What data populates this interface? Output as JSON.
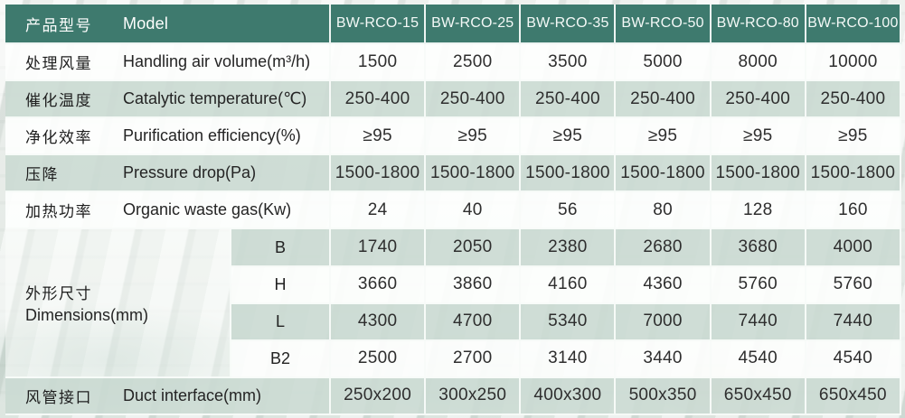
{
  "header": {
    "label_cn": "产品型号",
    "label_en": "Model",
    "models": [
      "BW-RCO-15",
      "BW-RCO-25",
      "BW-RCO-35",
      "BW-RCO-50",
      "BW-RCO-80",
      "BW-RCO-100"
    ]
  },
  "rows": [
    {
      "cn": "处理风量",
      "en": "Handling air volume(m³/h)",
      "values": [
        "1500",
        "2500",
        "3500",
        "5000",
        "8000",
        "10000"
      ]
    },
    {
      "cn": "催化温度",
      "en": "Catalytic temperature(℃)",
      "values": [
        "250-400",
        "250-400",
        "250-400",
        "250-400",
        "250-400",
        "250-400"
      ]
    },
    {
      "cn": "净化效率",
      "en": "Purification efficiency(%)",
      "values": [
        "≥95",
        "≥95",
        "≥95",
        "≥95",
        "≥95",
        "≥95"
      ]
    },
    {
      "cn": "压降",
      "en": "Pressure drop(Pa)",
      "values": [
        "1500-1800",
        "1500-1800",
        "1500-1800",
        "1500-1800",
        "1500-1800",
        "1500-1800"
      ]
    },
    {
      "cn": "加热功率",
      "en": "Organic waste gas(Kw)",
      "values": [
        "24",
        "40",
        "56",
        "80",
        "128",
        "160"
      ]
    }
  ],
  "dimensions": {
    "cn": "外形尺寸",
    "en": "Dimensions(mm)",
    "subrows": [
      {
        "label": "B",
        "values": [
          "1740",
          "2050",
          "2380",
          "2680",
          "3680",
          "4000"
        ]
      },
      {
        "label": "H",
        "values": [
          "3660",
          "3860",
          "4160",
          "4360",
          "5760",
          "5760"
        ]
      },
      {
        "label": "L",
        "values": [
          "4300",
          "4700",
          "5340",
          "7000",
          "7440",
          "7440"
        ]
      },
      {
        "label": "B2",
        "values": [
          "2500",
          "2700",
          "3140",
          "3440",
          "4540",
          "4540"
        ]
      }
    ]
  },
  "duct": {
    "cn": "风管接口",
    "en": "Duct interface(mm)",
    "values": [
      "250x200",
      "300x250",
      "400x300",
      "500x350",
      "650x450",
      "650x450"
    ]
  },
  "colors": {
    "header_bg": "#3e7a6e",
    "header_text": "#f4f9f7",
    "row_green": "rgba(203,218,211,0.9)",
    "row_white": "rgba(253,254,253,0.92)",
    "text_dark": "#1e1e1e"
  }
}
